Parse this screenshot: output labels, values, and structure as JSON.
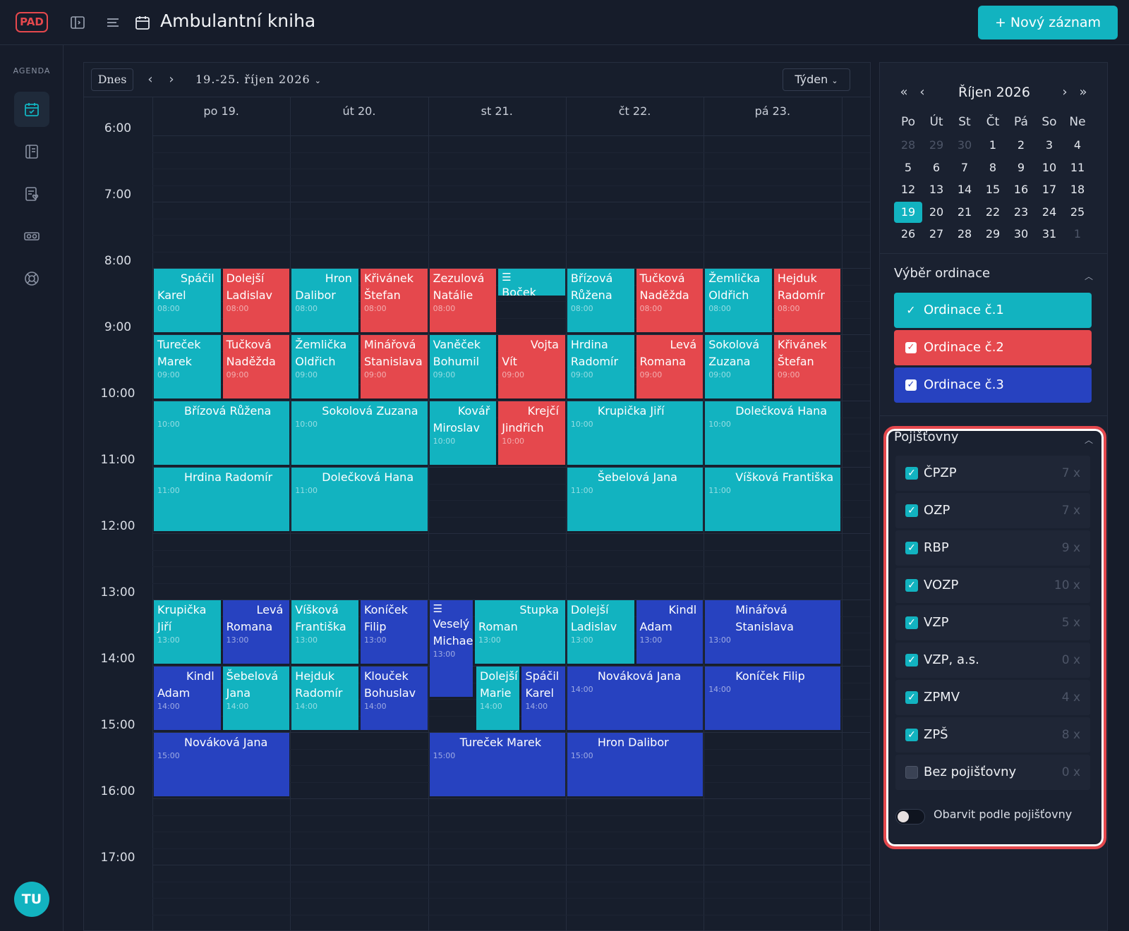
{
  "app": {
    "logo": "PAD",
    "title": "Ambulantní kniha",
    "new_button": "+ Nový záznam",
    "user_initials": "TU"
  },
  "sidebar": {
    "section_label": "AGENDA",
    "items": [
      {
        "icon": "calendar-check-icon"
      },
      {
        "icon": "book-icon"
      },
      {
        "icon": "document-heart-icon"
      },
      {
        "icon": "vr-glasses-icon"
      },
      {
        "icon": "lifebuoy-icon"
      }
    ]
  },
  "toolbar": {
    "today": "Dnes",
    "range": "19.-25. říjen 2026",
    "view": "Týden"
  },
  "days": [
    "po 19.",
    "út 20.",
    "st 21.",
    "čt 22.",
    "pá 23."
  ],
  "hours": [
    "6:00",
    "7:00",
    "8:00",
    "9:00",
    "10:00",
    "11:00",
    "12:00",
    "13:00",
    "14:00",
    "15:00",
    "16:00",
    "17:00"
  ],
  "events": [
    {
      "name": "Spáčil Karel",
      "time": "08:00"
    },
    {
      "name": "Dolejší Ladislav",
      "time": "08:00"
    },
    {
      "name": "Hron Dalibor",
      "time": "08:00"
    },
    {
      "name": "Křivánek Štefan",
      "time": "08:00"
    },
    {
      "name": "Zezulová Natálie",
      "time": "08:00"
    },
    {
      "name": "Boček Rudolf",
      "time": ""
    },
    {
      "name": "Břízová Růžena",
      "time": "08:00"
    },
    {
      "name": "Tučková Naděžda",
      "time": "08:00"
    },
    {
      "name": "Žemlička Oldřich",
      "time": "08:00"
    },
    {
      "name": "Hejduk Radomír",
      "time": "08:00"
    },
    {
      "name": "Tureček Marek",
      "time": "09:00"
    },
    {
      "name": "Tučková Naděžda",
      "time": "09:00"
    },
    {
      "name": "Žemlička Oldřich",
      "time": "09:00"
    },
    {
      "name": "Minářová Stanislava",
      "time": "09:00"
    },
    {
      "name": "Vaněček Bohumil",
      "time": "09:00"
    },
    {
      "name": "Vojta Vít",
      "time": "09:00"
    },
    {
      "name": "Hrdina Radomír",
      "time": "09:00"
    },
    {
      "name": "Levá Romana",
      "time": "09:00"
    },
    {
      "name": "Sokolová Zuzana",
      "time": "09:00"
    },
    {
      "name": "Křivánek Štefan",
      "time": "09:00"
    },
    {
      "name": "Břízová Růžena",
      "time": "10:00"
    },
    {
      "name": "Sokolová Zuzana",
      "time": "10:00"
    },
    {
      "name": "Kovář Miroslav",
      "time": "10:00"
    },
    {
      "name": "Krejčí Jindřich",
      "time": "10:00"
    },
    {
      "name": "Krupička Jiří",
      "time": "10:00"
    },
    {
      "name": "Dolečková Hana",
      "time": "10:00"
    },
    {
      "name": "Hrdina Radomír",
      "time": "11:00"
    },
    {
      "name": "Dolečková Hana",
      "time": "11:00"
    },
    {
      "name": "Šebelová Jana",
      "time": "11:00"
    },
    {
      "name": "Víšková Františka",
      "time": "11:00"
    },
    {
      "name": "Krupička Jiří",
      "time": "13:00"
    },
    {
      "name": "Levá Romana",
      "time": "13:00"
    },
    {
      "name": "Víšková Františka",
      "time": "13:00"
    },
    {
      "name": "Koníček Filip",
      "time": "13:00"
    },
    {
      "name": "Veselý Michae",
      "time": "13:00"
    },
    {
      "name": "Stupka Roman",
      "time": "13:00"
    },
    {
      "name": "Dolejší Ladislav",
      "time": "13:00"
    },
    {
      "name": "Kindl Adam",
      "time": "13:00"
    },
    {
      "name": "Minářová Stanislava",
      "time": "13:00"
    },
    {
      "name": "Kindl Adam",
      "time": "14:00"
    },
    {
      "name": "Šebelová Jana",
      "time": "14:00"
    },
    {
      "name": "Hejduk Radomír",
      "time": "14:00"
    },
    {
      "name": "Klouček Bohuslav",
      "time": "14:00"
    },
    {
      "name": "Dolejší Marie",
      "time": "14:00"
    },
    {
      "name": "Spáčil Karel",
      "time": "14:00"
    },
    {
      "name": "Nováková Jana",
      "time": "14:00"
    },
    {
      "name": "Koníček Filip",
      "time": "14:00"
    },
    {
      "name": "Nováková Jana",
      "time": "15:00"
    },
    {
      "name": "Tureček Marek",
      "time": "15:00"
    },
    {
      "name": "Hron Dalibor",
      "time": "15:00"
    }
  ],
  "mini_calendar": {
    "title": "Říjen 2026",
    "weekdays": [
      "Po",
      "Út",
      "St",
      "Čt",
      "Pá",
      "So",
      "Ne"
    ],
    "weeks": [
      [
        "28",
        "29",
        "30",
        "1",
        "2",
        "3",
        "4"
      ],
      [
        "5",
        "6",
        "7",
        "8",
        "9",
        "10",
        "11"
      ],
      [
        "12",
        "13",
        "14",
        "15",
        "16",
        "17",
        "18"
      ],
      [
        "19",
        "20",
        "21",
        "22",
        "23",
        "24",
        "25"
      ],
      [
        "26",
        "27",
        "28",
        "29",
        "30",
        "31",
        "1"
      ]
    ],
    "today": "19"
  },
  "ordinace": {
    "title": "Výběr ordinace",
    "items": [
      "Ordinace č.1",
      "Ordinace č.2",
      "Ordinace č.3"
    ]
  },
  "pojistovny": {
    "title": "Pojišťovny",
    "items": [
      {
        "name": "ČPZP",
        "count": "7 x",
        "checked": true
      },
      {
        "name": "OZP",
        "count": "7 x",
        "checked": true
      },
      {
        "name": "RBP",
        "count": "9 x",
        "checked": true
      },
      {
        "name": "VOZP",
        "count": "10 x",
        "checked": true
      },
      {
        "name": "VZP",
        "count": "5 x",
        "checked": true
      },
      {
        "name": "VZP, a.s.",
        "count": "0 x",
        "checked": true
      },
      {
        "name": "ZPMV",
        "count": "4 x",
        "checked": true
      },
      {
        "name": "ZPŠ",
        "count": "8 x",
        "checked": true
      },
      {
        "name": "Bez pojišťovny",
        "count": "0 x",
        "checked": false
      }
    ],
    "toggle_label": "Obarvit podle pojišťovny"
  },
  "colors": {
    "ordinace_1": "#12b3c0",
    "ordinace_2": "#e5484d",
    "ordinace_3": "#2742c0",
    "background": "#161c2a"
  }
}
